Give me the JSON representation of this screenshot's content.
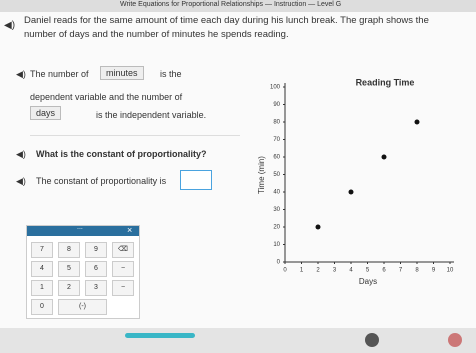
{
  "header": {
    "title": "Write Equations for Proportional Relationships — Instruction — Level G"
  },
  "prompt": "Daniel reads for the same amount of time each day during his lunch break. The graph shows the number of days and the number of minutes he spends reading.",
  "statement": {
    "before": "The number of",
    "answer1": "minutes",
    "middle": "is the",
    "line2": "dependent variable and the number of",
    "answer2": "days",
    "after": "is the independent variable."
  },
  "question": "What is the constant of proportionality?",
  "answer_prompt": "The constant of proportionality is",
  "keypad": {
    "menu": "...",
    "close": "×",
    "rows": [
      [
        "7",
        "8",
        "9",
        "⌫"
      ],
      [
        "4",
        "5",
        "6",
        "−"
      ],
      [
        "1",
        "2",
        "3",
        "−"
      ],
      [
        "0",
        "(-)"
      ]
    ]
  },
  "chart_data": {
    "type": "scatter",
    "title": "Reading Time",
    "x_label": "Days",
    "y_label": "Time (min)",
    "series": [
      {
        "name": "Reading time",
        "color": "#111111",
        "x": [
          2,
          4,
          6,
          8
        ],
        "values": [
          20,
          40,
          60,
          80
        ]
      }
    ],
    "xlim": [
      0,
      10
    ],
    "xticks": [
      0,
      1,
      2,
      3,
      4,
      5,
      6,
      7,
      8,
      9,
      10
    ],
    "ylim": [
      0,
      100
    ],
    "yticks": [
      0,
      10,
      20,
      30,
      40,
      50,
      60,
      70,
      80,
      90,
      100
    ],
    "grid": false
  }
}
